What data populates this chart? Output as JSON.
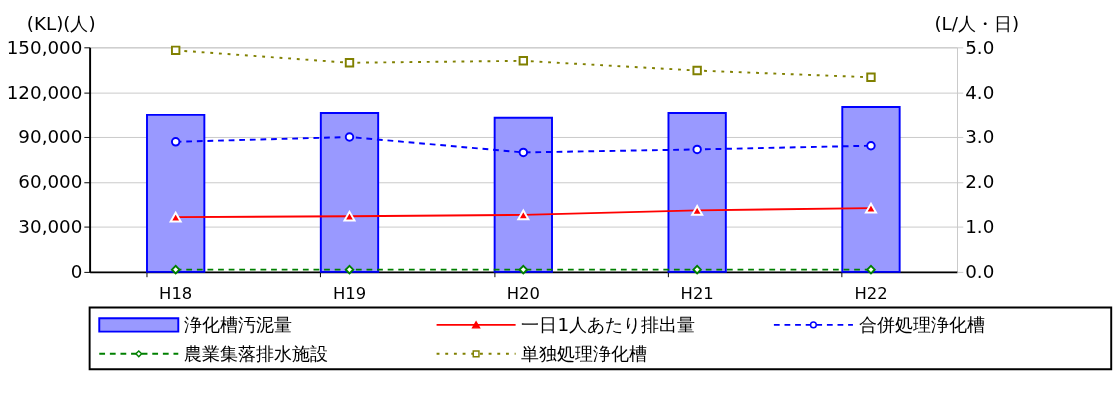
{
  "chart_data": {
    "type": "bar",
    "categories": [
      "H18",
      "H19",
      "H20",
      "H21",
      "H22"
    ],
    "ylabel": "(KL)(人)",
    "y2label": "(L/人・日)",
    "ylim": [
      0,
      150000
    ],
    "yticks": [
      0,
      {
        "value": 30000,
        "label": "30,000"
      },
      {
        "value": 60000,
        "label": "60,000"
      },
      {
        "value": 90000,
        "label": "90,000"
      },
      {
        "value": 120000,
        "label": "120,000"
      },
      {
        "value": 150000,
        "label": "150,000"
      }
    ],
    "y2lim": [
      0,
      5
    ],
    "y2ticks": [
      {
        "value": 0,
        "label": "0.0"
      },
      {
        "value": 1,
        "label": "1.0"
      },
      {
        "value": 2,
        "label": "2.0"
      },
      {
        "value": 3,
        "label": "3.0"
      },
      {
        "value": 4,
        "label": "4.0"
      },
      {
        "value": 5,
        "label": "5.0"
      }
    ],
    "grid": "y",
    "legend": "bottom",
    "series": [
      {
        "name": "浄化槽汚泥量",
        "color": "#9999ff",
        "values": [
          104900,
          106200,
          103000,
          106200,
          110100
        ]
      },
      {
        "name": "一日1人あたり排出量",
        "type": "line",
        "axis": "y2",
        "color": "#ff0000",
        "marker": "triangle",
        "line_style": "solid",
        "values": [
          1.22,
          1.24,
          1.27,
          1.37,
          1.42
        ]
      },
      {
        "name": "合併処理浄化槽",
        "type": "line",
        "color": "#0000ff",
        "marker": "circle",
        "line_style": "dashed",
        "values": [
          86900,
          90100,
          79800,
          81800,
          84300
        ]
      },
      {
        "name": "農業集落排水施設",
        "type": "line",
        "color": "#008000",
        "marker": "diamond",
        "line_style": "dashed",
        "values": [
          1500,
          1500,
          1500,
          1500,
          1500
        ]
      },
      {
        "name": "単独処理浄化槽",
        "type": "line",
        "color": "#808000",
        "marker": "square",
        "line_style": "dotted",
        "values": [
          148000,
          139700,
          141000,
          134500,
          130000
        ]
      }
    ]
  }
}
